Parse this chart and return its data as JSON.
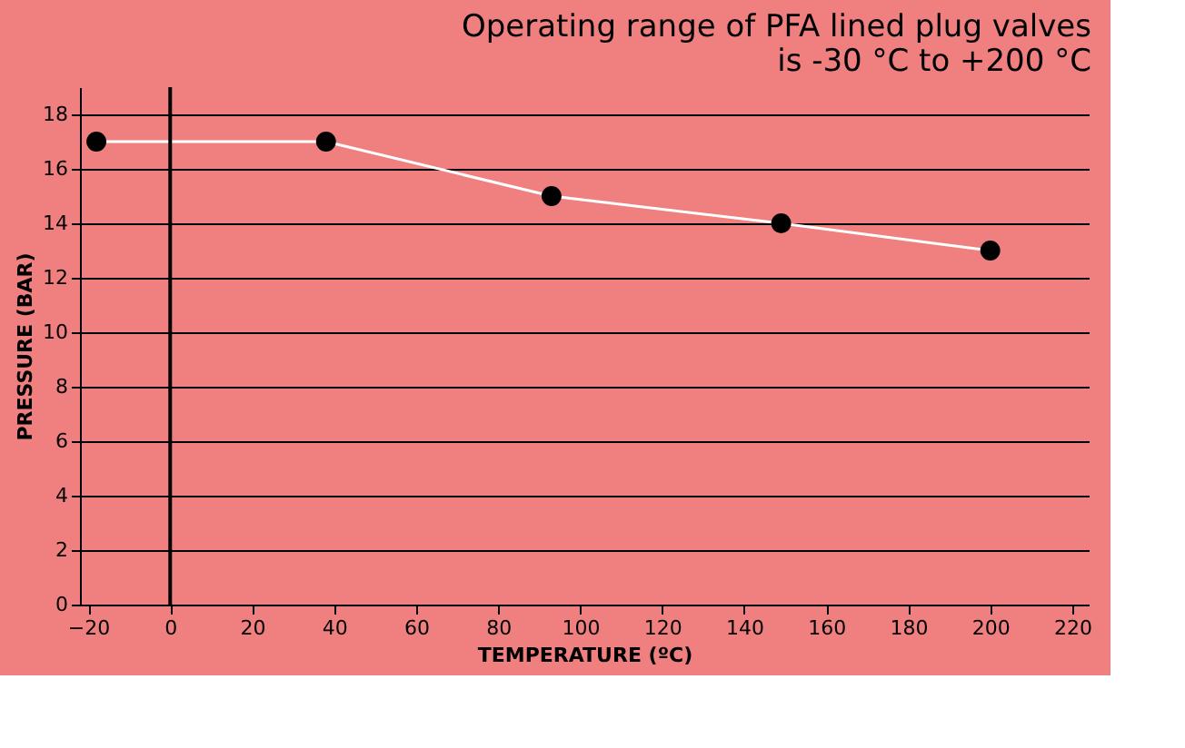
{
  "chart_data": {
    "type": "line",
    "title": "Operating range of PFA lined plug valves is -30 °C to +200 °C",
    "xlabel": "TEMPERATURE (ºC)",
    "ylabel": "PRESSURE (BAR)",
    "x": [
      -18,
      38,
      93,
      149,
      200
    ],
    "series": [
      {
        "color": "#ffffff",
        "values": [
          17,
          17,
          15,
          14,
          13
        ]
      }
    ],
    "marker": "circle",
    "line_style": "solid",
    "xlim": [
      -22,
      224
    ],
    "xticks": [
      -20,
      0,
      20,
      40,
      60,
      80,
      100,
      120,
      140,
      160,
      180,
      200,
      220
    ],
    "ylim": [
      0,
      19
    ],
    "yticks": [
      0,
      2,
      4,
      6,
      8,
      10,
      12,
      14,
      16,
      18
    ],
    "grid": "y",
    "ref_lines": [
      {
        "axis": "x",
        "value": 0,
        "color": "#000000"
      }
    ]
  }
}
